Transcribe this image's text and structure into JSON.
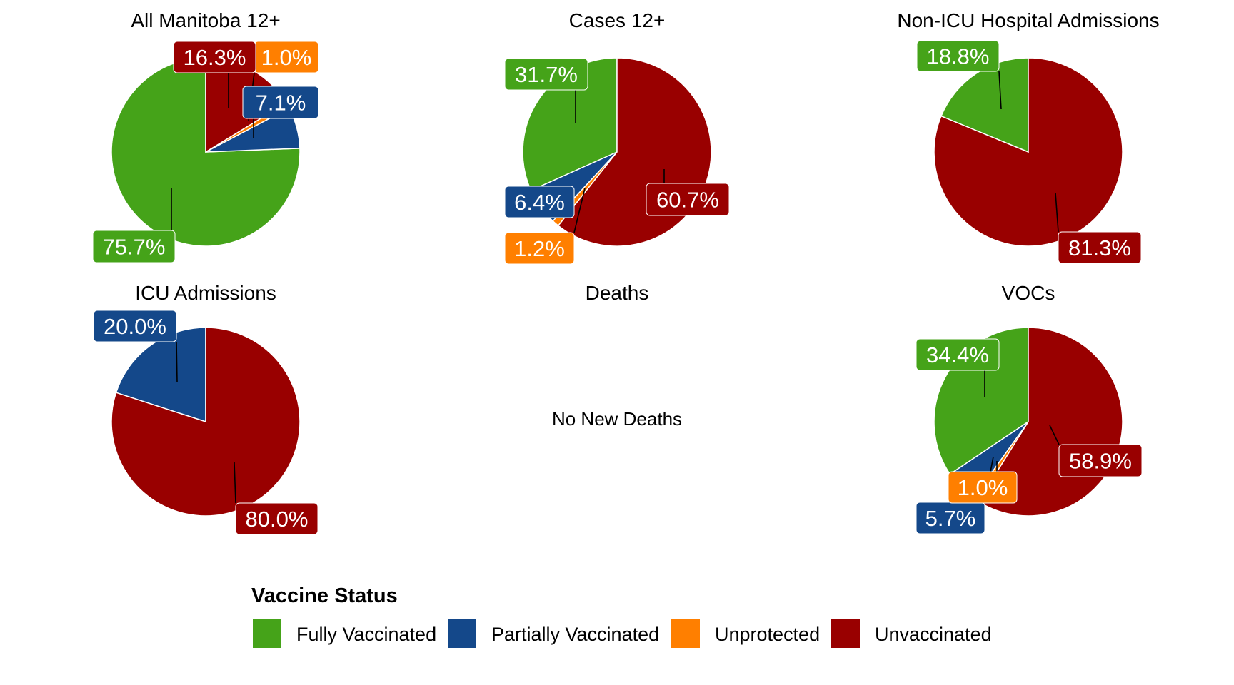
{
  "chart_data": [
    {
      "type": "pie",
      "title": "All Manitoba 12+",
      "categories": [
        "Fully Vaccinated",
        "Partially Vaccinated",
        "Unprotected",
        "Unvaccinated"
      ],
      "values": [
        75.7,
        7.1,
        1.0,
        16.3
      ],
      "labels": [
        "75.7%",
        "7.1%",
        "1.0%",
        "16.3%"
      ]
    },
    {
      "type": "pie",
      "title": "Cases 12+",
      "categories": [
        "Fully Vaccinated",
        "Partially Vaccinated",
        "Unprotected",
        "Unvaccinated"
      ],
      "values": [
        31.7,
        6.4,
        1.2,
        60.7
      ],
      "labels": [
        "31.7%",
        "6.4%",
        "1.2%",
        "60.7%"
      ]
    },
    {
      "type": "pie",
      "title": "Non-ICU Hospital Admissions",
      "categories": [
        "Fully Vaccinated",
        "Unvaccinated"
      ],
      "values": [
        18.8,
        81.3
      ],
      "labels": [
        "18.8%",
        "81.3%"
      ]
    },
    {
      "type": "pie",
      "title": "ICU Admissions",
      "categories": [
        "Partially Vaccinated",
        "Unvaccinated"
      ],
      "values": [
        20.0,
        80.0
      ],
      "labels": [
        "20.0%",
        "80.0%"
      ]
    },
    {
      "type": "pie",
      "title": "Deaths",
      "categories": [],
      "values": [],
      "labels": [],
      "empty_message": "No New Deaths"
    },
    {
      "type": "pie",
      "title": "VOCs",
      "categories": [
        "Fully Vaccinated",
        "Partially Vaccinated",
        "Unprotected",
        "Unvaccinated"
      ],
      "values": [
        34.4,
        5.7,
        1.0,
        58.9
      ],
      "labels": [
        "34.4%",
        "5.7%",
        "1.0%",
        "58.9%"
      ]
    }
  ],
  "legend": {
    "title": "Vaccine Status",
    "placement": "bottom",
    "items": [
      {
        "label": "Fully Vaccinated",
        "color": "#45a319"
      },
      {
        "label": "Partially Vaccinated",
        "color": "#14488a"
      },
      {
        "label": "Unprotected",
        "color": "#ff7f00"
      },
      {
        "label": "Unvaccinated",
        "color": "#990000"
      }
    ]
  }
}
